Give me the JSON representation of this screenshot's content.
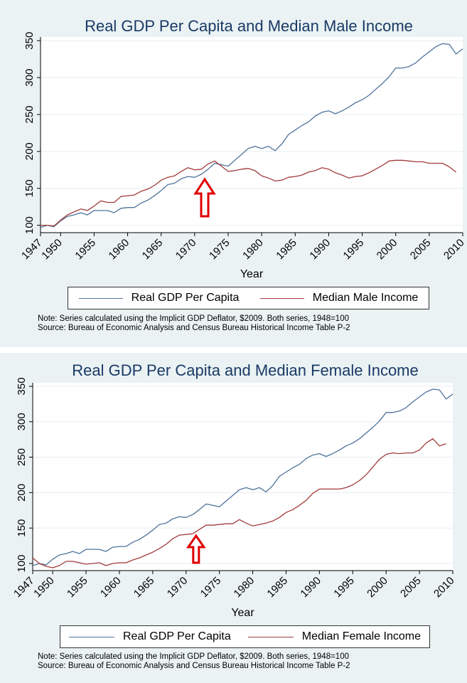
{
  "colors": {
    "gdp": "#4f739b",
    "income": "#a33b3b",
    "arrow": "#e00000",
    "title": "#1a3a66",
    "panel_bg": "#eaf2f3",
    "plot_bg": "#ffffff"
  },
  "chart_data": [
    {
      "type": "line",
      "title": "Real GDP Per Capita and Median Male Income",
      "xlabel": "Year",
      "ylabel": "",
      "xlim": [
        1947,
        2010
      ],
      "ylim": [
        90,
        355
      ],
      "x_ticks": [
        "1947",
        "1950",
        "1955",
        "1960",
        "1965",
        "1970",
        "1975",
        "1980",
        "1985",
        "1990",
        "1995",
        "2000",
        "2005",
        "2010"
      ],
      "y_ticks": [
        "100",
        "150",
        "200",
        "250",
        "300",
        "350"
      ],
      "legend_position": "bottom",
      "annotation": {
        "type": "arrow-up",
        "x": 1971.5
      },
      "series": [
        {
          "name": "Real GDP Per Capita",
          "color": "#4f739b",
          "x": [
            1947,
            1948,
            1949,
            1950,
            1951,
            1952,
            1953,
            1954,
            1955,
            1956,
            1957,
            1958,
            1959,
            1960,
            1961,
            1962,
            1963,
            1964,
            1965,
            1966,
            1967,
            1968,
            1969,
            1970,
            1971,
            1972,
            1973,
            1974,
            1975,
            1976,
            1977,
            1978,
            1979,
            1980,
            1981,
            1982,
            1983,
            1984,
            1985,
            1986,
            1987,
            1988,
            1989,
            1990,
            1991,
            1992,
            1993,
            1994,
            1995,
            1996,
            1997,
            1998,
            1999,
            2000,
            2001,
            2002,
            2003,
            2004,
            2005,
            2006,
            2007,
            2008,
            2009,
            2010
          ],
          "values": [
            97,
            100,
            98,
            106,
            112,
            114,
            117,
            114,
            120,
            120,
            120,
            117,
            123,
            124,
            124,
            130,
            134,
            140,
            147,
            155,
            157,
            163,
            166,
            165,
            169,
            176,
            184,
            182,
            180,
            188,
            196,
            204,
            207,
            204,
            207,
            201,
            210,
            223,
            229,
            235,
            240,
            248,
            253,
            255,
            251,
            255,
            260,
            266,
            270,
            276,
            284,
            292,
            301,
            313,
            313,
            315,
            320,
            328,
            335,
            342,
            346,
            345,
            332,
            339
          ]
        },
        {
          "name": "Median Male Income",
          "color": "#a33b3b",
          "x": [
            1947,
            1948,
            1949,
            1950,
            1951,
            1952,
            1953,
            1954,
            1955,
            1956,
            1957,
            1958,
            1959,
            1960,
            1961,
            1962,
            1963,
            1964,
            1965,
            1966,
            1967,
            1968,
            1969,
            1970,
            1971,
            1972,
            1973,
            1974,
            1975,
            1976,
            1977,
            1978,
            1979,
            1980,
            1981,
            1982,
            1983,
            1984,
            1985,
            1986,
            1987,
            1988,
            1989,
            1990,
            1991,
            1992,
            1993,
            1994,
            1995,
            1996,
            1997,
            1998,
            1999,
            2000,
            2001,
            2002,
            2003,
            2004,
            2005,
            2006,
            2007,
            2008,
            2009
          ],
          "values": [
            100,
            100,
            99,
            107,
            114,
            118,
            122,
            120,
            126,
            133,
            131,
            131,
            139,
            140,
            141,
            146,
            149,
            154,
            161,
            165,
            167,
            173,
            178,
            175,
            176,
            183,
            187,
            180,
            173,
            174,
            176,
            177,
            174,
            167,
            164,
            160,
            161,
            165,
            166,
            168,
            172,
            174,
            178,
            176,
            171,
            168,
            164,
            166,
            167,
            171,
            176,
            181,
            187,
            188,
            188,
            187,
            186,
            186,
            184,
            184,
            184,
            179,
            172
          ]
        }
      ]
    },
    {
      "type": "line",
      "title": "Real GDP Per Capita and Median Female Income",
      "xlabel": "Year",
      "ylabel": "",
      "xlim": [
        1947,
        2010
      ],
      "ylim": [
        90,
        355
      ],
      "x_ticks": [
        "1947",
        "1950",
        "1955",
        "1960",
        "1965",
        "1970",
        "1975",
        "1980",
        "1985",
        "1990",
        "1995",
        "2000",
        "2005",
        "2010"
      ],
      "y_ticks": [
        "100",
        "150",
        "200",
        "250",
        "300",
        "350"
      ],
      "legend_position": "bottom",
      "annotation": {
        "type": "arrow-up",
        "x": 1971.5
      },
      "series": [
        {
          "name": "Real GDP Per Capita",
          "color": "#4f739b",
          "x": [
            1947,
            1948,
            1949,
            1950,
            1951,
            1952,
            1953,
            1954,
            1955,
            1956,
            1957,
            1958,
            1959,
            1960,
            1961,
            1962,
            1963,
            1964,
            1965,
            1966,
            1967,
            1968,
            1969,
            1970,
            1971,
            1972,
            1973,
            1974,
            1975,
            1976,
            1977,
            1978,
            1979,
            1980,
            1981,
            1982,
            1983,
            1984,
            1985,
            1986,
            1987,
            1988,
            1989,
            1990,
            1991,
            1992,
            1993,
            1994,
            1995,
            1996,
            1997,
            1998,
            1999,
            2000,
            2001,
            2002,
            2003,
            2004,
            2005,
            2006,
            2007,
            2008,
            2009,
            2010
          ],
          "values": [
            97,
            100,
            98,
            106,
            112,
            114,
            117,
            114,
            120,
            120,
            120,
            117,
            123,
            124,
            124,
            130,
            134,
            140,
            147,
            155,
            157,
            163,
            166,
            165,
            169,
            176,
            184,
            182,
            180,
            188,
            196,
            204,
            207,
            204,
            207,
            201,
            210,
            223,
            229,
            235,
            240,
            248,
            253,
            255,
            251,
            255,
            260,
            266,
            270,
            276,
            284,
            292,
            301,
            313,
            313,
            315,
            320,
            328,
            335,
            342,
            346,
            345,
            332,
            339
          ]
        },
        {
          "name": "Median Female Income",
          "color": "#a33b3b",
          "x": [
            1947,
            1948,
            1949,
            1950,
            1951,
            1952,
            1953,
            1954,
            1955,
            1956,
            1957,
            1958,
            1959,
            1960,
            1961,
            1962,
            1963,
            1964,
            1965,
            1966,
            1967,
            1968,
            1969,
            1970,
            1971,
            1972,
            1973,
            1974,
            1975,
            1976,
            1977,
            1978,
            1979,
            1980,
            1981,
            1982,
            1983,
            1984,
            1985,
            1986,
            1987,
            1988,
            1989,
            1990,
            1991,
            1992,
            1993,
            1994,
            1995,
            1996,
            1997,
            1998,
            1999,
            2000,
            2001,
            2002,
            2003,
            2004,
            2005,
            2006,
            2007,
            2008,
            2009
          ],
          "values": [
            108,
            100,
            96,
            94,
            97,
            103,
            103,
            101,
            99,
            100,
            101,
            97,
            100,
            101,
            101,
            105,
            108,
            112,
            116,
            121,
            127,
            135,
            140,
            141,
            142,
            148,
            154,
            154,
            155,
            156,
            156,
            162,
            157,
            153,
            155,
            157,
            160,
            165,
            172,
            176,
            182,
            189,
            199,
            205,
            205,
            205,
            205,
            207,
            211,
            217,
            225,
            236,
            247,
            254,
            256,
            255,
            256,
            256,
            260,
            270,
            276,
            266,
            269
          ]
        }
      ]
    }
  ],
  "notes": [
    {
      "line1": "Note: Series calculated using the Implicit GDP Deflator, $2009. Both series, 1948=100",
      "line2": "Source: Bureau of Economic Analysis and Census Bureau Historical Income Table P-2"
    },
    {
      "line1": "Note: Series calculated using the Implicit GDP Deflator, $2009. Both series, 1948=100",
      "line2": "Source: Bureau of Economic Analysis and Census Bureau Historical Income Table P-2"
    }
  ]
}
